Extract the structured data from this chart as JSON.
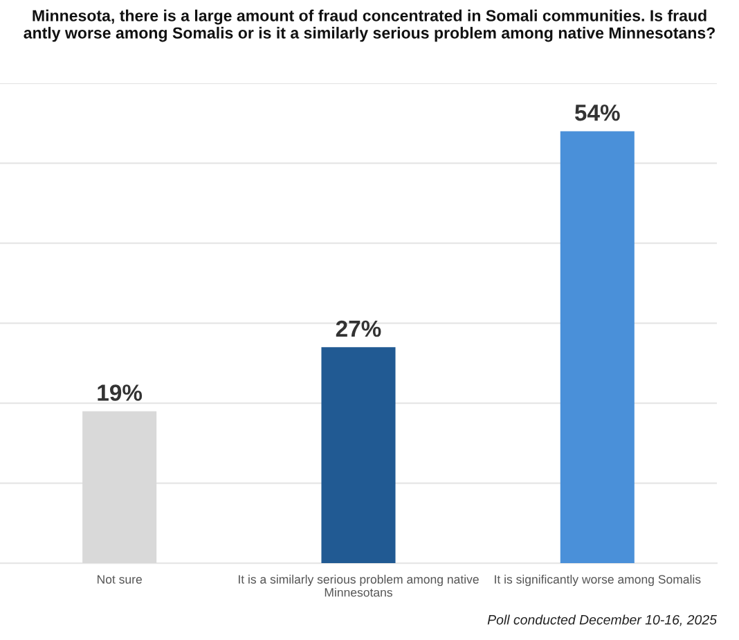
{
  "chart_data": {
    "type": "bar",
    "title": "Minnesota, there is a large amount of fraud concentrated in Somali communities. Is fraud\nantly worse among Somalis or is it a similarly serious problem among native Minnesotans?",
    "categories": [
      "Not sure",
      "It is a similarly serious problem among native\nMinnesotans",
      "It is significantly worse among Somalis"
    ],
    "values": [
      19,
      27,
      54
    ],
    "colors": [
      "#d9d9d9",
      "#215a93",
      "#4a90d9"
    ],
    "value_labels": [
      "19%",
      "27%",
      "54%"
    ],
    "ylim": [
      0,
      60
    ],
    "yticks": [
      {
        "value": 0,
        "label": null
      },
      {
        "value": 10,
        "label": null
      },
      {
        "value": 20,
        "label": null
      },
      {
        "value": 30,
        "label": null
      },
      {
        "value": 40,
        "label": null
      },
      {
        "value": 50,
        "label": null
      },
      {
        "value": 60,
        "label": null
      }
    ],
    "grid": "y",
    "annotations": [
      "Poll conducted December 10-16, 2025"
    ]
  }
}
